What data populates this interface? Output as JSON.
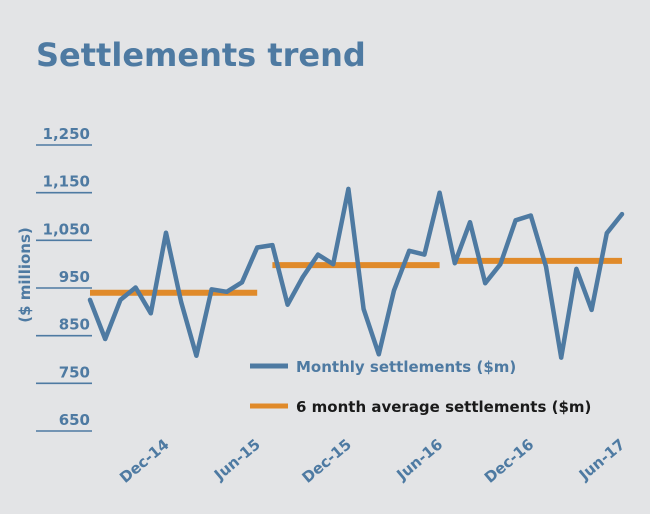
{
  "chart_data": {
    "type": "line",
    "title": "Settlements trend",
    "ylabel": "($ millions)",
    "xlabel": "",
    "ylim": [
      650,
      1250
    ],
    "y_ticks": [
      "1,250",
      "1,150",
      "1,050",
      "950",
      "850",
      "750",
      "650"
    ],
    "y_tick_values": [
      1250,
      1150,
      1050,
      950,
      850,
      750,
      650
    ],
    "x_tick_labels": [
      "Dec-14",
      "Jun-15",
      "Dec-15",
      "Jun-16",
      "Dec-16",
      "Jun-17"
    ],
    "x_tick_indices": [
      5,
      11,
      17,
      23,
      29,
      35
    ],
    "grid": false,
    "legend_placement": "bottom-right",
    "colors": {
      "monthly": "#4e7aa2",
      "average": "#e08a2a",
      "title": "#4e7aa2",
      "axis_text": "#4e7aa2",
      "legend_text_avg": "#1a1a1a"
    },
    "series": [
      {
        "name": "Monthly settlements ($m)",
        "type": "line",
        "values": [
          925,
          843,
          925,
          951,
          897,
          1066,
          920,
          808,
          947,
          942,
          962,
          1035,
          1040,
          915,
          973,
          1020,
          1000,
          1158,
          906,
          811,
          945,
          1028,
          1020,
          1150,
          1002,
          1088,
          960,
          1000,
          1092,
          1102,
          995,
          804,
          990,
          904,
          1065,
          1105
        ]
      },
      {
        "name": "6 month average settlements ($m)",
        "type": "step",
        "segments": [
          {
            "start": 0,
            "end": 11,
            "value": 940
          },
          {
            "start": 12,
            "end": 23,
            "value": 998
          },
          {
            "start": 24,
            "end": 35,
            "value": 1007
          }
        ]
      }
    ]
  }
}
